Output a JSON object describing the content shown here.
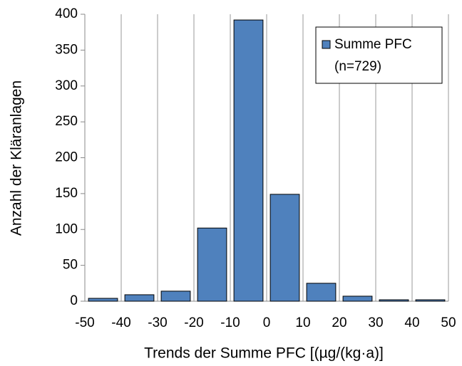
{
  "chart_data": {
    "type": "histogram",
    "x_label": "Trends der Summe PFC [(µg/(kg·a)]",
    "y_label": "Anzahl der Kläranlagen",
    "bins": [
      -50,
      -40,
      -30,
      -20,
      -10,
      0,
      10,
      20,
      30,
      40,
      50
    ],
    "series": [
      {
        "name": "Summe PFC",
        "color": "#4f81bd",
        "values": [
          4,
          9,
          14,
          102,
          392,
          149,
          25,
          7,
          2,
          2
        ]
      }
    ],
    "legend_note": "(n=729)",
    "legend": "upper right",
    "xlim": [
      -50,
      50
    ],
    "xticks": [
      -50,
      -40,
      -30,
      -20,
      -10,
      0,
      10,
      20,
      30,
      40,
      50
    ],
    "ylim": [
      0,
      400
    ],
    "yticks": [
      0,
      50,
      100,
      150,
      200,
      250,
      300,
      350,
      400
    ],
    "grid": true
  }
}
